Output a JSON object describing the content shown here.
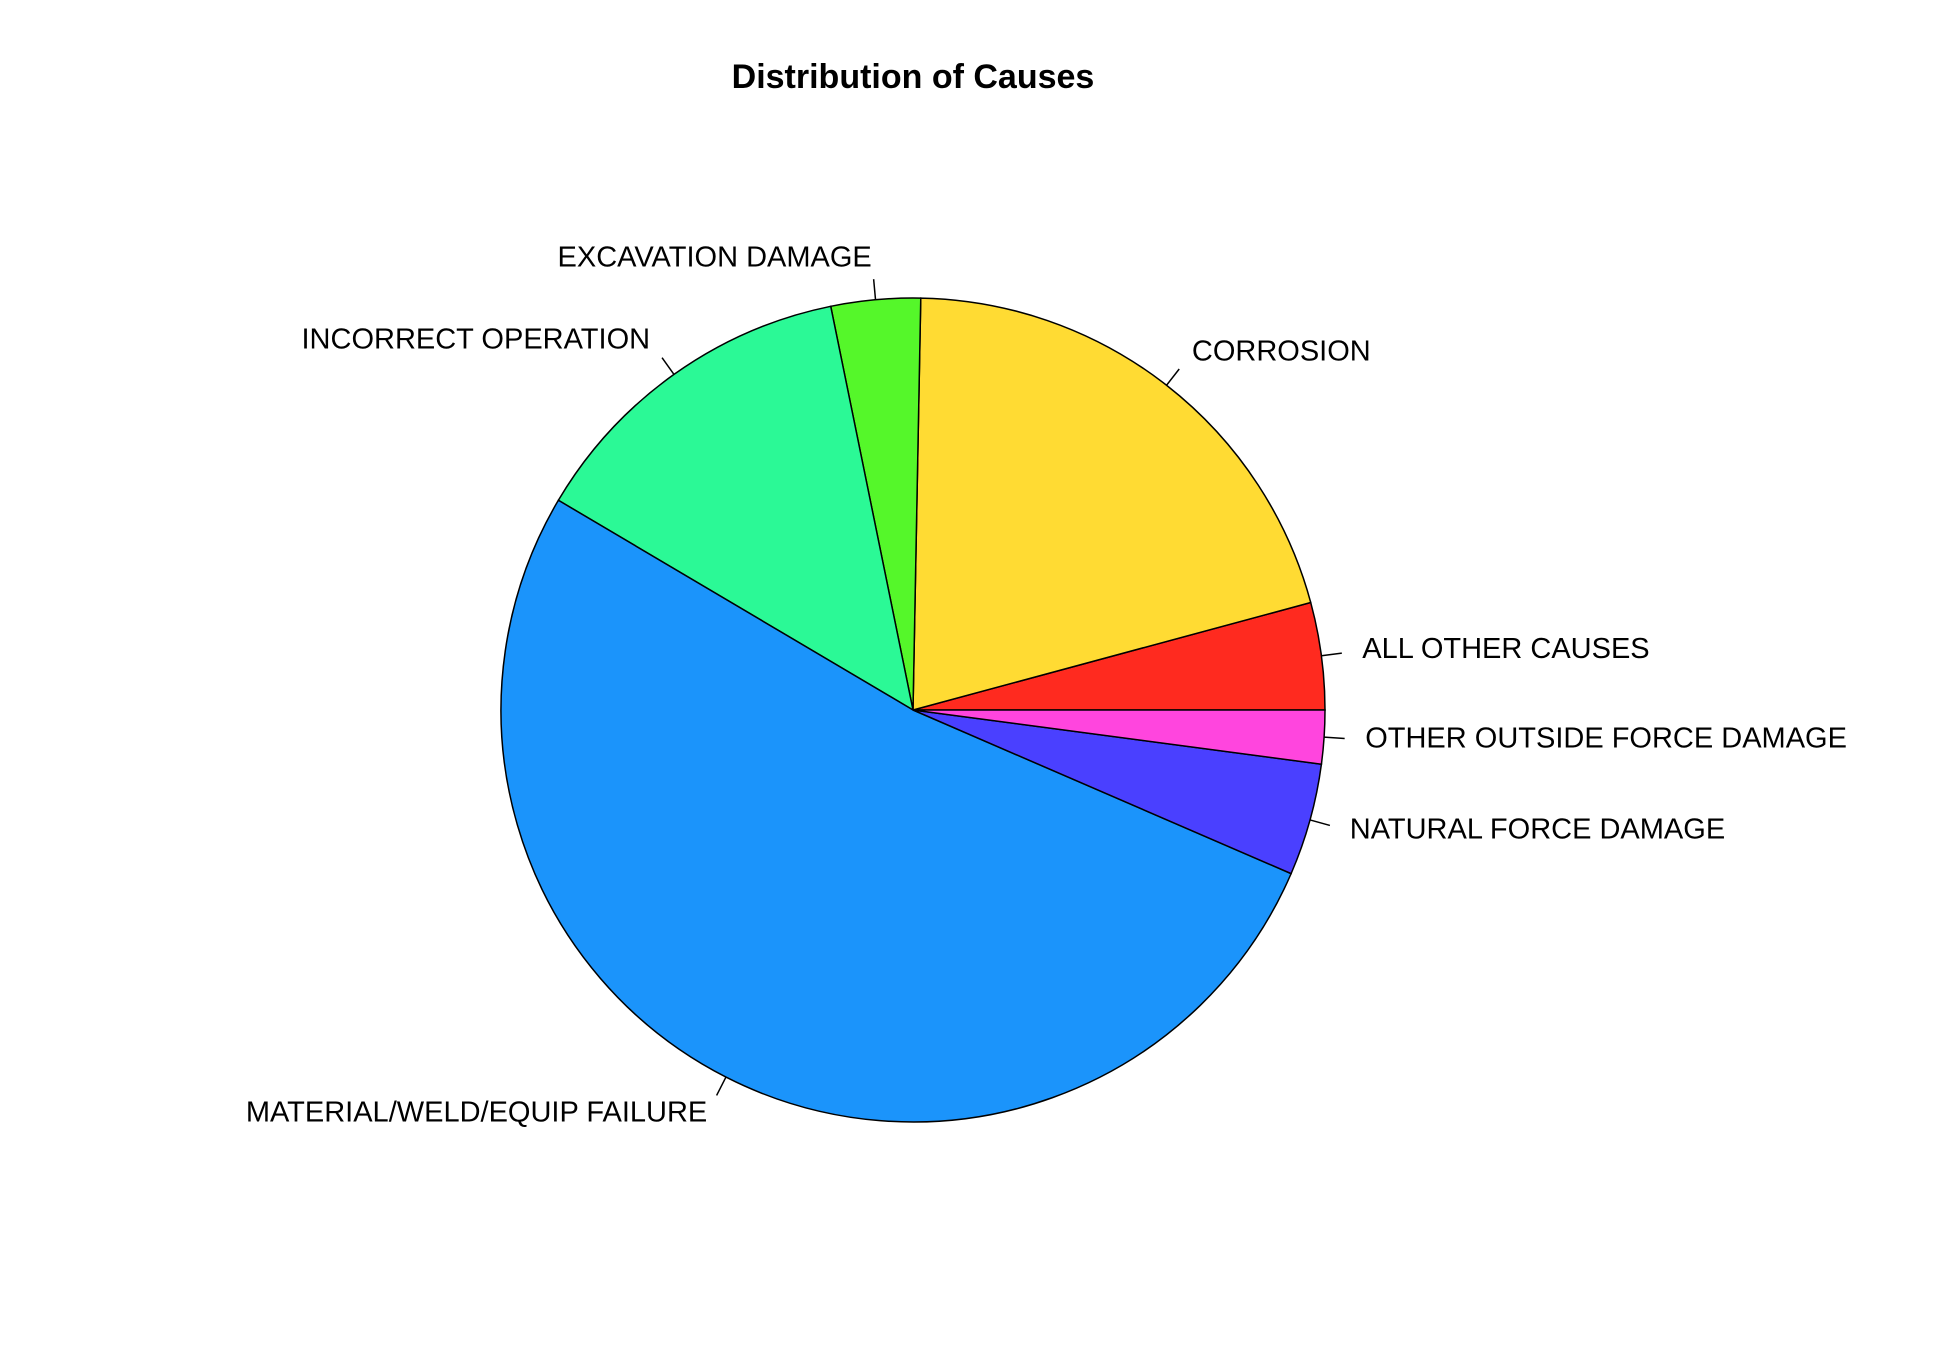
{
  "chart_data": {
    "type": "pie",
    "title": "Distribution of Causes",
    "start_angle_deg": 0,
    "direction": "counterclockwise",
    "slices": [
      {
        "label": "ALL OTHER CAUSES",
        "value": 4.2,
        "color": "#FF2A1F"
      },
      {
        "label": "CORROSION",
        "value": 20.5,
        "color": "#FFDB33"
      },
      {
        "label": "EXCAVATION DAMAGE",
        "value": 3.5,
        "color": "#55F72A"
      },
      {
        "label": "INCORRECT OPERATION",
        "value": 13.3,
        "color": "#2BF996"
      },
      {
        "label": "MATERIAL/WELD/EQUIP FAILURE",
        "value": 52.0,
        "color": "#1B94FB"
      },
      {
        "label": "NATURAL FORCE DAMAGE",
        "value": 4.4,
        "color": "#4A40FF"
      },
      {
        "label": "OTHER OUTSIDE FORCE DAMAGE",
        "value": 2.1,
        "color": "#FF45DE"
      }
    ]
  }
}
